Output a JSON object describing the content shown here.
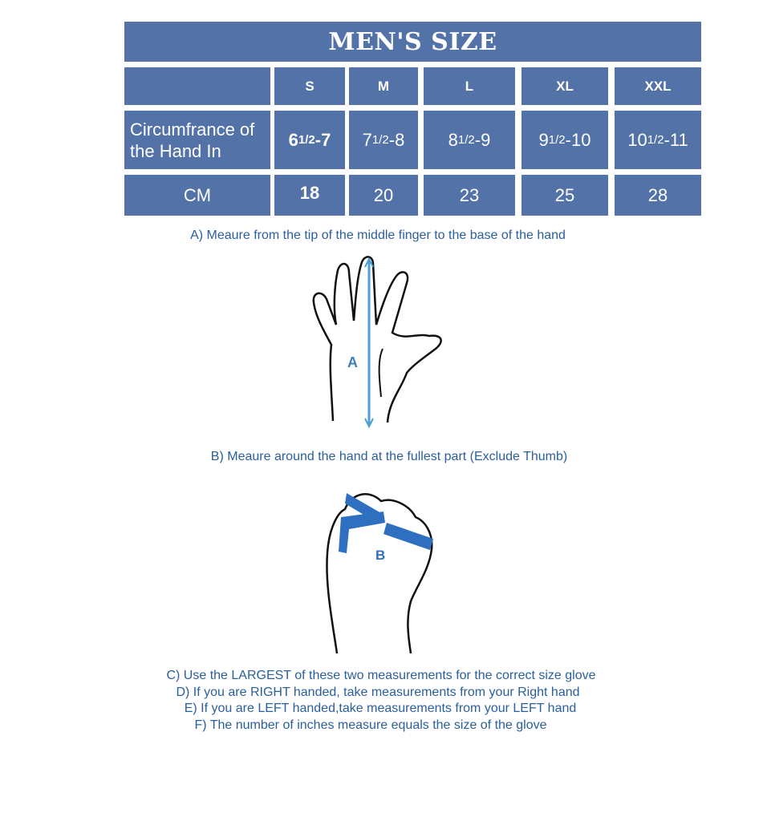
{
  "title": "MEN'S SIZE",
  "sizes": [
    "S",
    "M",
    "L",
    "XL",
    "XXL"
  ],
  "row_inches": {
    "label": "Circumfrance of the Hand In",
    "label_line1": "Circumfrance of",
    "label_line2": "the Hand In",
    "values": [
      {
        "whole": "6 ",
        "frac": "1/2",
        "rest": "-7"
      },
      {
        "whole": "7",
        "frac": "1/2",
        "rest": "-8"
      },
      {
        "whole": "8",
        "frac": "1/2",
        "rest": " -9"
      },
      {
        "whole": "9",
        "frac": "1/2",
        "rest": " -10"
      },
      {
        "whole": "10",
        "frac": "1/2",
        "rest": "-11"
      }
    ]
  },
  "row_cm": {
    "label": "CM",
    "values": [
      "18",
      "20",
      "23",
      "25",
      "28"
    ]
  },
  "instructions": {
    "a": "A) Meaure from the tip of the middle finger to the base of the hand",
    "a_marker": "A",
    "b": "B) Meaure around the hand at the fullest part (Exclude Thumb)",
    "b_marker": "B",
    "c": "C) Use the LARGEST of these two measurements for the correct size glove",
    "d": "D) If you are RIGHT handed, take measurements from your Right hand",
    "e": "E) If you are LEFT handed,take measurements from your LEFT hand",
    "f": "F) The number of inches measure equals the size of the glove"
  },
  "colors": {
    "table": "#5272a8",
    "text": "#2a5f9e",
    "arrow": "#4aa0d5",
    "tape": "#2e6fc0"
  }
}
